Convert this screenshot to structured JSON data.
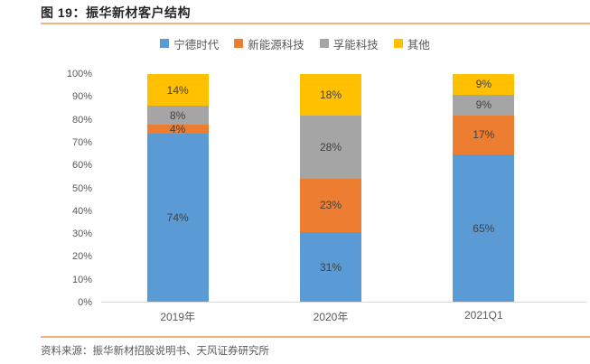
{
  "page": {
    "title": "图 19：振华新材客户结构"
  },
  "chart_data": {
    "type": "bar",
    "stacked": true,
    "title": "图 19：振华新材客户结构",
    "categories": [
      "2019年",
      "2020年",
      "2021Q1"
    ],
    "series": [
      {
        "name": "宁德时代",
        "color": "#5B9BD5",
        "values": [
          74,
          31,
          65
        ]
      },
      {
        "name": "新能源科技",
        "color": "#ED7D31",
        "values": [
          4,
          23,
          17
        ]
      },
      {
        "name": "孚能科技",
        "color": "#A5A5A5",
        "values": [
          8,
          28,
          9
        ]
      },
      {
        "name": "其他",
        "color": "#FFC000",
        "values": [
          14,
          18,
          9
        ]
      }
    ],
    "value_suffix": "%",
    "y_axis": {
      "min": 0,
      "max": 100,
      "step": 10,
      "tick_labels": [
        "0%",
        "10%",
        "20%",
        "30%",
        "40%",
        "50%",
        "60%",
        "70%",
        "80%",
        "90%",
        "100%"
      ]
    },
    "legend_position": "top",
    "grid": false
  },
  "footer": {
    "source": "资料来源：振华新材招股说明书、天风证券研究所"
  },
  "colors": {
    "divider": "#F4B183",
    "axis_line": "#D9D9D9",
    "tick_text": "#595959",
    "bar_label": "#404040",
    "title_text": "#262626"
  }
}
